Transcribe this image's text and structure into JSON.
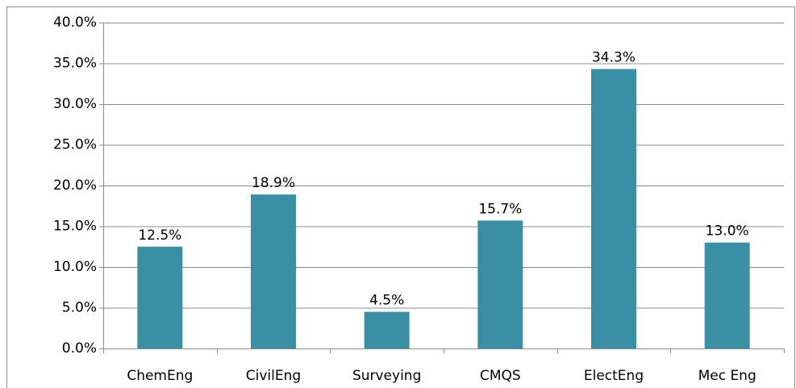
{
  "chart_data": {
    "type": "bar",
    "categories": [
      "ChemEng",
      "CivilEng",
      "Surveying",
      "CMQS",
      "ElectEng",
      "Mec Eng"
    ],
    "values": [
      12.5,
      18.9,
      4.5,
      15.7,
      34.3,
      13.0
    ],
    "value_labels": [
      "12.5%",
      "18.9%",
      "4.5%",
      "15.7%",
      "34.3%",
      "13.0%"
    ],
    "color": "#3a8fa5",
    "ylim": [
      0,
      40
    ],
    "yticks": [
      {
        "value": 0,
        "label": "0.0%"
      },
      {
        "value": 5,
        "label": "5.0%"
      },
      {
        "value": 10,
        "label": "10.0%"
      },
      {
        "value": 15,
        "label": "15.0%"
      },
      {
        "value": 20,
        "label": "20.0%"
      },
      {
        "value": 25,
        "label": "25.0%"
      },
      {
        "value": 30,
        "label": "30.0%"
      },
      {
        "value": 35,
        "label": "35.0%"
      },
      {
        "value": 40,
        "label": "40.0%"
      }
    ],
    "grid": true
  }
}
